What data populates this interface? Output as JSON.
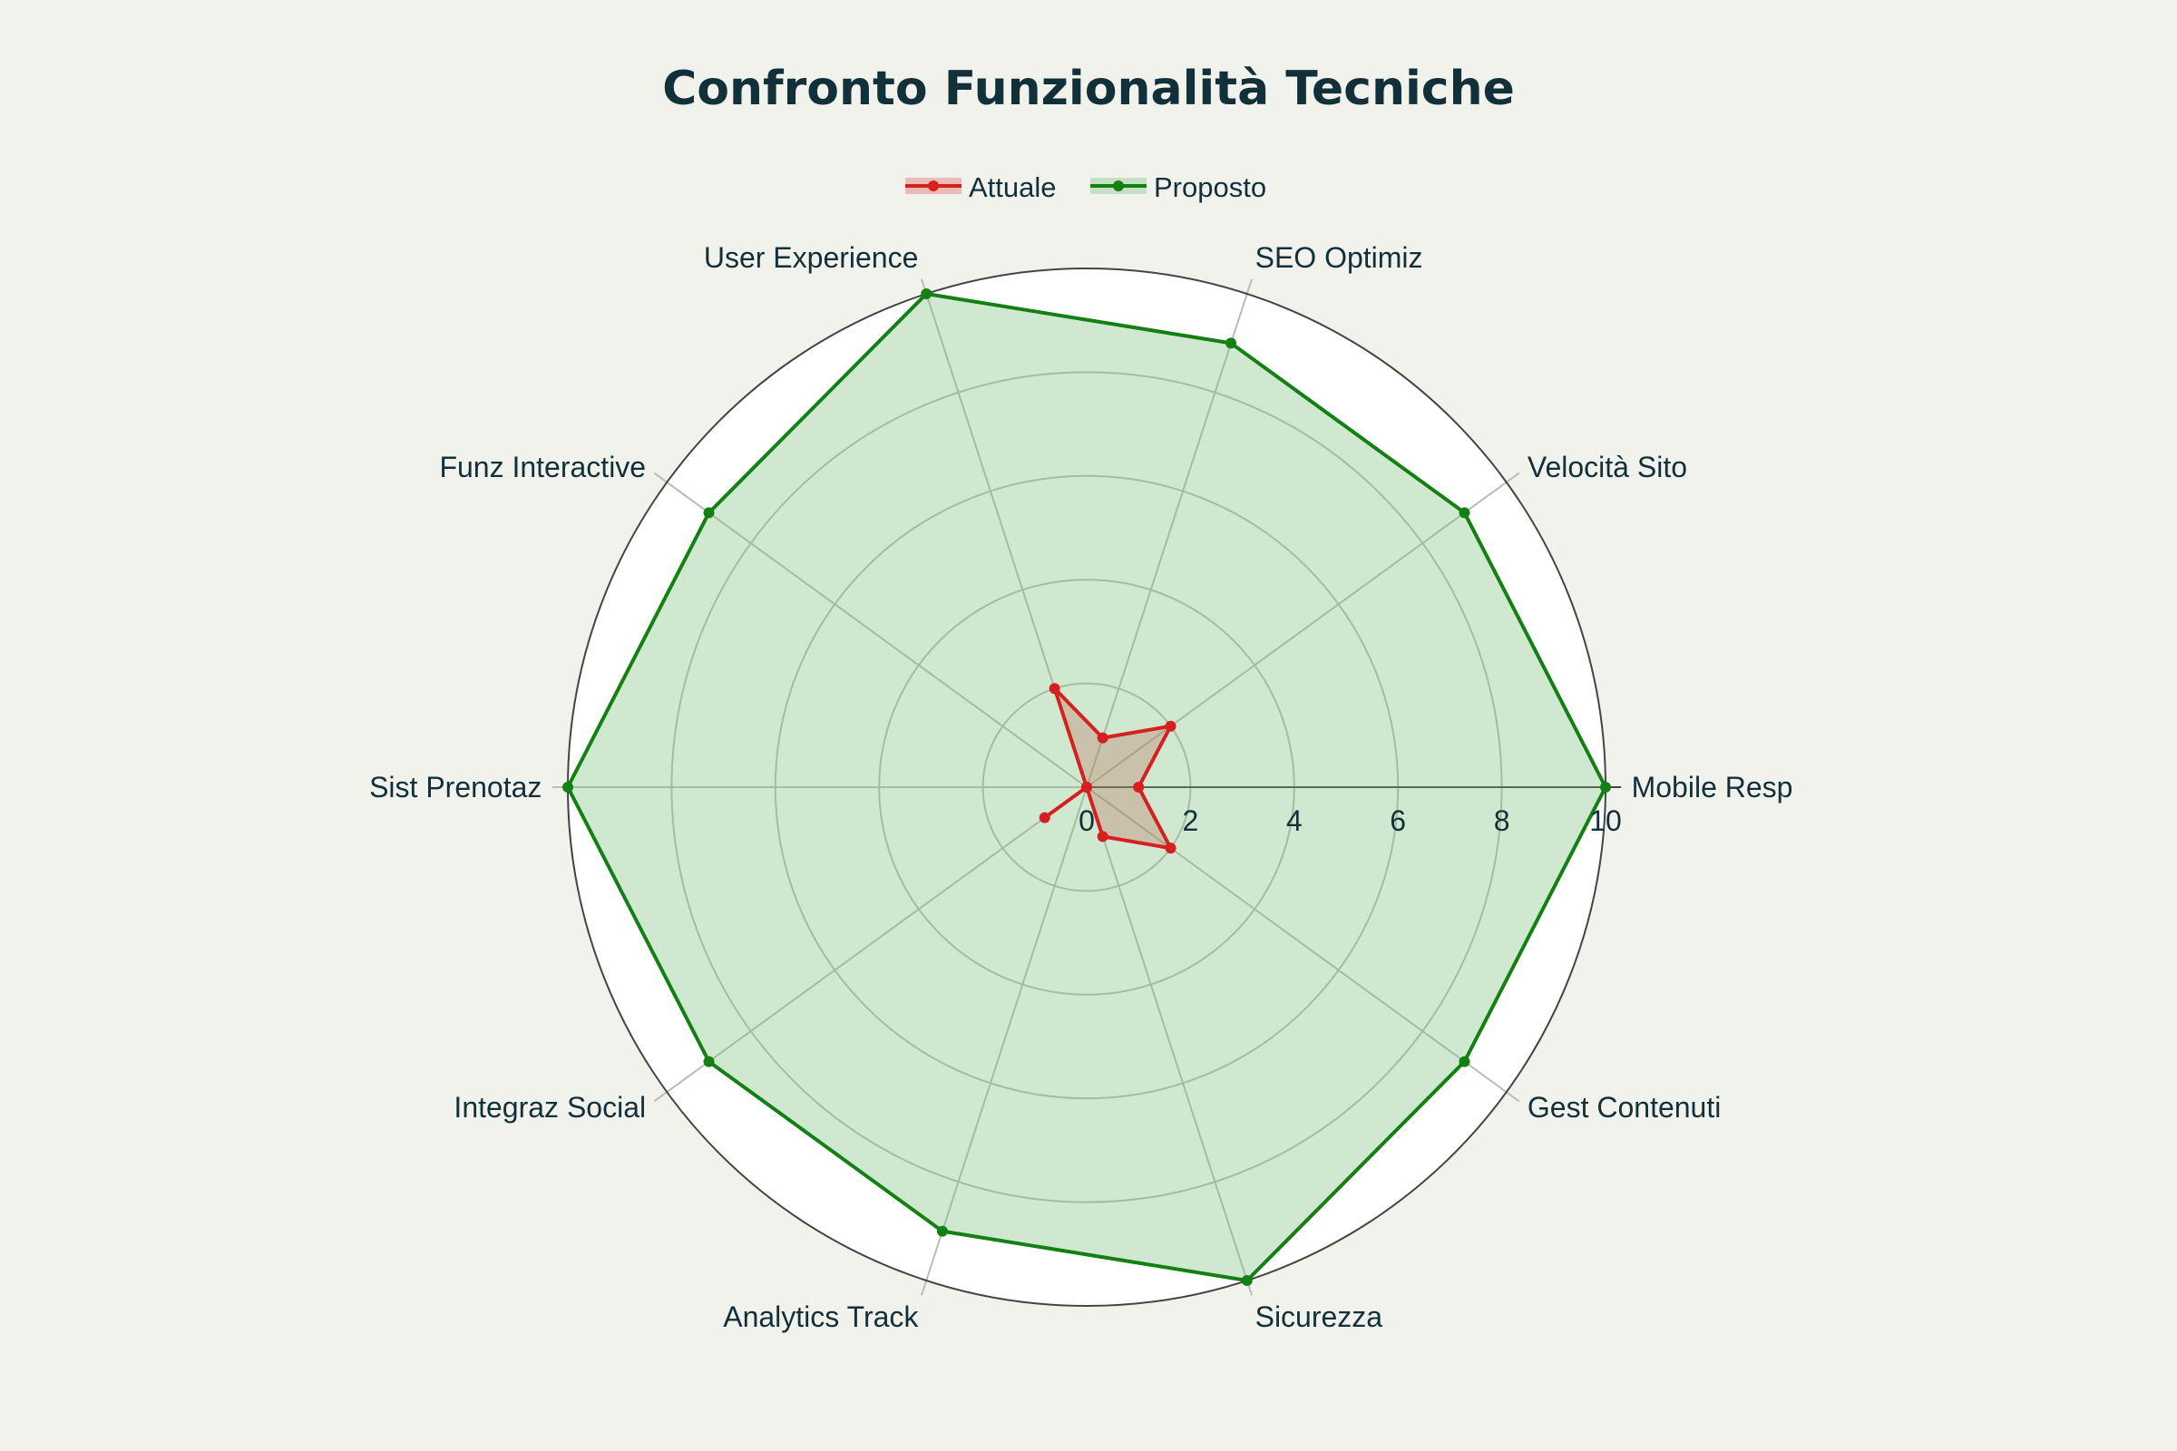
{
  "chart_data": {
    "type": "radar",
    "title": "Confronto Funzionalità Tecniche",
    "categories": [
      "Mobile Resp",
      "Velocità Sito",
      "SEO Optimiz",
      "User Experience",
      "Funz Interactive",
      "Sist Prenotaz",
      "Integraz Social",
      "Analytics Track",
      "Sicurezza",
      "Gest Contenuti"
    ],
    "series": [
      {
        "name": "Attuale",
        "color": "#d62020",
        "fill": "rgba(220,60,60,0.30)",
        "values": [
          1,
          2,
          1,
          2,
          0,
          0,
          1,
          0,
          1,
          2
        ]
      },
      {
        "name": "Proposto",
        "color": "#138013",
        "fill": "rgba(120,190,120,0.35)",
        "values": [
          10,
          9,
          9,
          10,
          9,
          10,
          9,
          9,
          10,
          9
        ]
      }
    ],
    "r_range": [
      0,
      10
    ],
    "r_ticks": [
      "0",
      "2",
      "4",
      "6",
      "8",
      "10"
    ],
    "grid": true,
    "legend_position": "top-center"
  }
}
